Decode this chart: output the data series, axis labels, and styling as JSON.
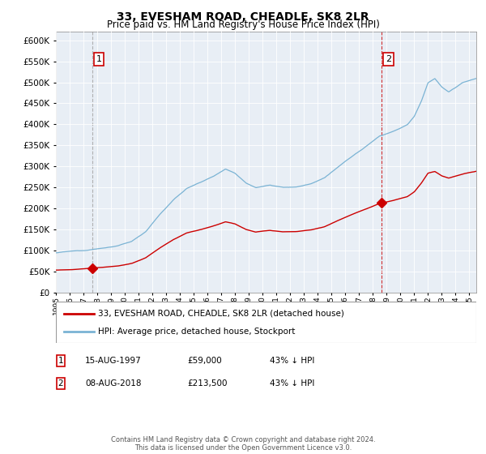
{
  "title": "33, EVESHAM ROAD, CHEADLE, SK8 2LR",
  "subtitle": "Price paid vs. HM Land Registry's House Price Index (HPI)",
  "hpi_label": "HPI: Average price, detached house, Stockport",
  "price_label": "33, EVESHAM ROAD, CHEADLE, SK8 2LR (detached house)",
  "hpi_color": "#7ab3d4",
  "price_color": "#cc0000",
  "sale1_year": 1997.62,
  "sale1_price": 59000,
  "sale1_label": "1",
  "sale1_date": "15-AUG-1997",
  "sale1_pct": "43% ↓ HPI",
  "sale2_year": 2018.62,
  "sale2_price": 213500,
  "sale2_label": "2",
  "sale2_date": "08-AUG-2018",
  "sale2_pct": "43% ↓ HPI",
  "ylim_min": 0,
  "ylim_max": 620000,
  "xmin": 1995.0,
  "xmax": 2025.5,
  "footer": "Contains HM Land Registry data © Crown copyright and database right 2024.\nThis data is licensed under the Open Government Licence v3.0.",
  "background_color": "#ffffff",
  "plot_bg_color": "#e8eef5"
}
